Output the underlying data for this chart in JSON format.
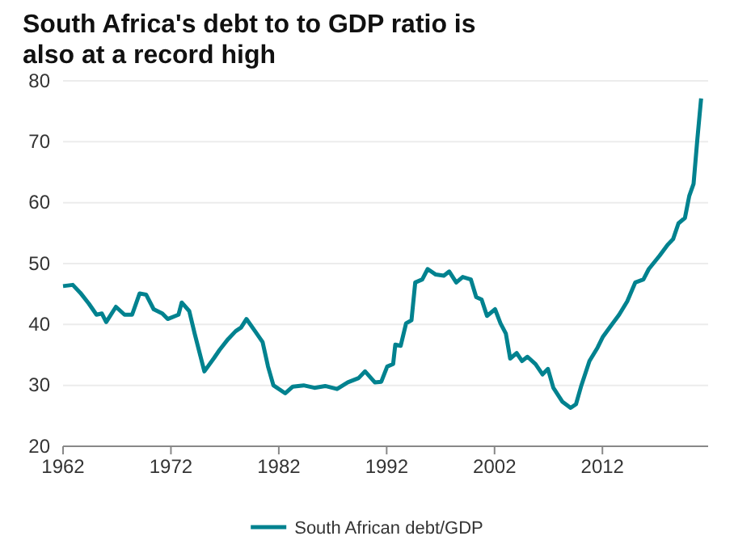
{
  "chart_data": {
    "type": "line",
    "title": "South Africa's  debt to to GDP ratio is also at a record high",
    "xlim": [
      1962,
      2021.8
    ],
    "xticks": [
      1962,
      1972,
      1982,
      1992,
      2002,
      2012
    ],
    "ylim": [
      20,
      80
    ],
    "yticks": [
      20,
      30,
      40,
      50,
      60,
      70,
      80
    ],
    "grid": "y",
    "legend": "bottom",
    "series": [
      {
        "name": "South African debt/GDP",
        "color": "#00828f",
        "x": [
          1962,
          1962.9,
          1963.6,
          1964.4,
          1965.1,
          1965.6,
          1966,
          1966.9,
          1967.7,
          1968.4,
          1969.1,
          1969.7,
          1970.4,
          1971.2,
          1971.7,
          1972.7,
          1973,
          1973.7,
          1974.2,
          1975.1,
          1976,
          1976.5,
          1977.3,
          1978,
          1978.5,
          1979,
          1979.8,
          1980.5,
          1981,
          1981.5,
          1982.6,
          1983.3,
          1984.3,
          1985.3,
          1986.3,
          1987.4,
          1988.4,
          1989.4,
          1990,
          1990.9,
          1991.5,
          1992.05,
          1992.6,
          1992.8,
          1993.3,
          1993.8,
          1994.3,
          1994.65,
          1995.3,
          1995.8,
          1996.55,
          1997.3,
          1997.8,
          1998.45,
          1999.05,
          1999.8,
          2000.3,
          2000.8,
          2001.3,
          2002.05,
          2002.55,
          2003.05,
          2003.45,
          2004.05,
          2004.55,
          2005.05,
          2005.8,
          2006.45,
          2006.95,
          2007.45,
          2008.3,
          2009.05,
          2009.55,
          2010.05,
          2010.8,
          2011.55,
          2012.05,
          2012.8,
          2013.55,
          2014.3,
          2015.05,
          2015.8,
          2016.3,
          2017.3,
          2018.05,
          2018.55,
          2019.05,
          2019.65,
          2020.05,
          2020.45,
          2020.8,
          2021.15
        ],
        "values": [
          46.3,
          46.5,
          45.2,
          43.4,
          41.6,
          41.8,
          40.4,
          42.9,
          41.6,
          41.6,
          45.1,
          44.9,
          42.5,
          41.8,
          40.9,
          41.6,
          43.6,
          42.2,
          38.5,
          32.3,
          34.5,
          35.8,
          37.6,
          38.9,
          39.5,
          40.9,
          38.9,
          37.1,
          33.1,
          30.0,
          28.7,
          29.8,
          30.0,
          29.6,
          29.9,
          29.4,
          30.5,
          31.2,
          32.3,
          30.5,
          30.6,
          33.1,
          33.5,
          36.7,
          36.5,
          40.2,
          40.7,
          46.9,
          47.4,
          49.1,
          48.2,
          48.0,
          48.7,
          46.9,
          47.8,
          47.4,
          44.5,
          44.1,
          41.4,
          42.5,
          40.2,
          38.5,
          34.4,
          35.3,
          34.0,
          34.7,
          33.5,
          31.8,
          32.7,
          29.6,
          27.3,
          26.3,
          26.9,
          30.0,
          34.0,
          36.2,
          38.0,
          39.8,
          41.6,
          43.8,
          46.9,
          47.4,
          49.1,
          51.3,
          53.1,
          54.0,
          56.6,
          57.5,
          61.1,
          63.1,
          70.4,
          77.1
        ]
      }
    ]
  }
}
